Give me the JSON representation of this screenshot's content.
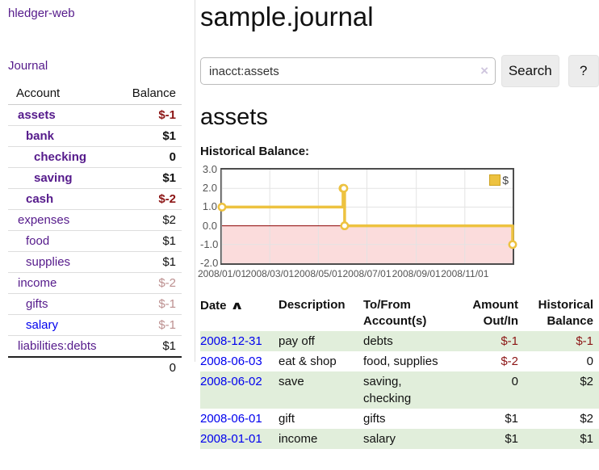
{
  "app_title": "hledger-web",
  "sidebar": {
    "journal_link": "Journal",
    "table": {
      "account_header": "Account",
      "balance_header": "Balance",
      "rows": [
        {
          "name": "assets",
          "balance": "$-1"
        },
        {
          "name": "bank",
          "balance": "$1"
        },
        {
          "name": "checking",
          "balance": "0"
        },
        {
          "name": "saving",
          "balance": "$1"
        },
        {
          "name": "cash",
          "balance": "$-2"
        },
        {
          "name": "expenses",
          "balance": "$2"
        },
        {
          "name": "food",
          "balance": "$1"
        },
        {
          "name": "supplies",
          "balance": "$1"
        },
        {
          "name": "income",
          "balance": "$-2"
        },
        {
          "name": "gifts",
          "balance": "$-1"
        },
        {
          "name": "salary",
          "balance": "$-1"
        },
        {
          "name": "liabilities:debts",
          "balance": "$1"
        }
      ],
      "total": "0"
    }
  },
  "header": {
    "title": "sample.journal"
  },
  "search": {
    "query": "inacct:assets",
    "clear_icon": "×",
    "button_label": "Search",
    "help_label": "?"
  },
  "account_page": {
    "title": "assets",
    "chart_label": "Historical Balance:"
  },
  "chart_data": {
    "type": "line",
    "title": "Historical Balance:",
    "series": [
      {
        "name": "$",
        "color": "#edc240",
        "style": "step",
        "points": [
          [
            "2008-01-01",
            1
          ],
          [
            "2008-06-01",
            2
          ],
          [
            "2008-06-02",
            2
          ],
          [
            "2008-06-03",
            0
          ],
          [
            "2008-12-31",
            -1
          ]
        ]
      }
    ],
    "x_range": [
      "2008-01-01",
      "2008-12-31"
    ],
    "ylim": [
      -2,
      3
    ],
    "yticks": [
      "3.0",
      "2.0",
      "1.0",
      "0.0",
      "-1.0",
      "-2.0"
    ],
    "xticks": [
      "2008/01/01",
      "2008/03/01",
      "2008/05/01",
      "2008/07/01",
      "2008/09/01",
      "2008/11/01"
    ],
    "grid": true,
    "legend_position": "top-right",
    "legend_label": "$",
    "negative_region_color": "#fbdcdc",
    "zero_line_color": "#8b0000"
  },
  "register_table": {
    "headers": {
      "date": "Date",
      "sort_indicator": "∧",
      "description": "Description",
      "tofrom": "To/From Account(s)",
      "amount": "Amount Out/In",
      "historical": "Historical Balance"
    },
    "rows": [
      {
        "date": "2008-12-31",
        "description": "pay off",
        "accounts": "debts",
        "amount": "$-1",
        "balance": "$-1"
      },
      {
        "date": "2008-06-03",
        "description": "eat & shop",
        "accounts": "food, supplies",
        "amount": "$-2",
        "balance": "0"
      },
      {
        "date": "2008-06-02",
        "description": "save",
        "accounts": "saving, checking",
        "amount": "0",
        "balance": "$2"
      },
      {
        "date": "2008-06-01",
        "description": "gift",
        "accounts": "gifts",
        "amount": "$1",
        "balance": "$2"
      },
      {
        "date": "2008-01-01",
        "description": "income",
        "accounts": "salary",
        "amount": "$1",
        "balance": "$1"
      }
    ]
  },
  "colors": {
    "link_purple": "#551a8b",
    "link_blue": "#0000ee",
    "negative_strong": "#8c1515",
    "negative_soft": "#bc8f8f",
    "chart_line": "#edc240",
    "row_green": "#e1eedb"
  }
}
